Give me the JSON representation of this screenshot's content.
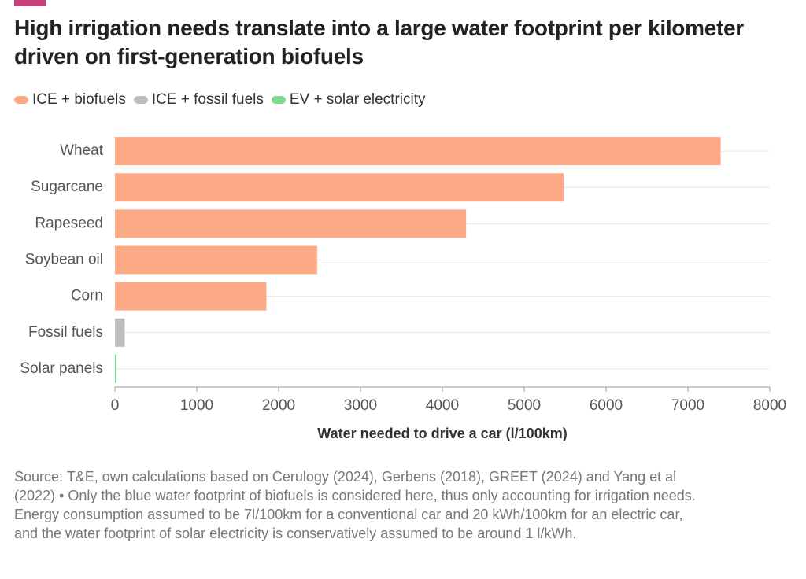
{
  "chart_data": {
    "type": "hbar",
    "title": "High irrigation needs translate into a large water footprint per kilometer driven on first-generation biofuels",
    "categories": [
      "Wheat",
      "Sugarcane",
      "Rapeseed",
      "Soybean oil",
      "Corn",
      "Fossil fuels",
      "Solar panels"
    ],
    "series": [
      {
        "name": "ICE + biofuels",
        "color": "#fcaa85",
        "values": [
          7400,
          5480,
          4290,
          2470,
          1850,
          null,
          null
        ]
      },
      {
        "name": "ICE + fossil fuels",
        "color": "#bdbdbd",
        "values": [
          null,
          null,
          null,
          null,
          null,
          120,
          null
        ]
      },
      {
        "name": "EV + solar electricity",
        "color": "#7fd98f",
        "values": [
          null,
          null,
          null,
          null,
          null,
          null,
          20
        ]
      }
    ],
    "xlabel": "Water needed to drive a car (l/100km)",
    "xlim": [
      0,
      8000
    ],
    "xticks": [
      0,
      1000,
      2000,
      3000,
      4000,
      5000,
      6000,
      7000,
      8000
    ],
    "source": "Source: T&E, own calculations based on Cerulogy (2024), Gerbens (2018), GREET (2024) and Yang et al (2022) • Only the blue water footprint of biofuels is considered here, thus only accounting for irrigation needs. Energy consumption assumed to be 7l/100km for a conventional car and 20 kWh/100km for an electric car, and the water footprint of solar electricity is conservatively assumed to be around 1 l/kWh."
  }
}
